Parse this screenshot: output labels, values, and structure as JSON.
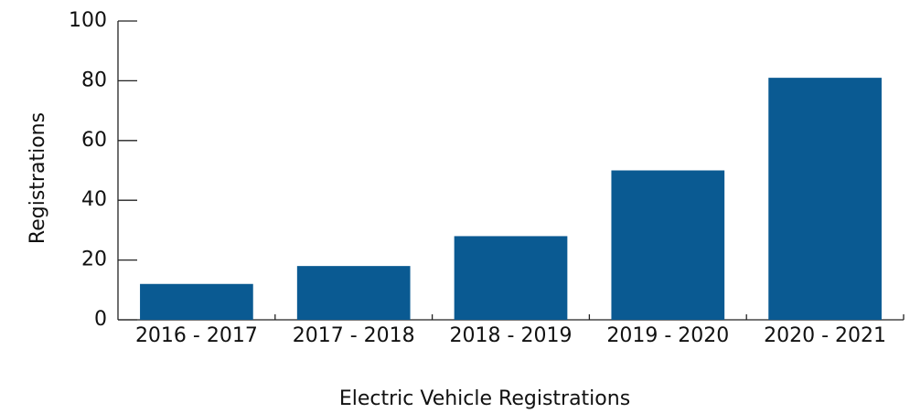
{
  "chart_data": {
    "type": "bar",
    "categories": [
      "2016 - 2017",
      "2017 - 2018",
      "2018 - 2019",
      "2019 - 2020",
      "2020 - 2021"
    ],
    "values": [
      12,
      18,
      28,
      50,
      81
    ],
    "color": "#0a5a92",
    "x_label": "Electric Vehicle Registrations",
    "y_label": "Registrations",
    "ylim": [
      0,
      100
    ],
    "yticks": [
      0,
      20,
      40,
      60,
      80,
      100
    ],
    "grid": false
  }
}
